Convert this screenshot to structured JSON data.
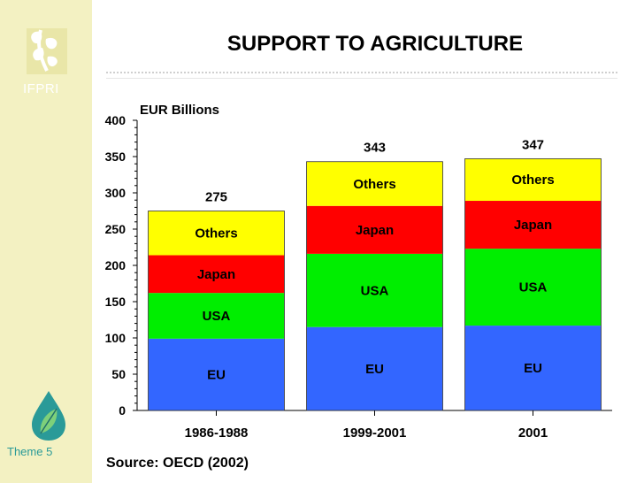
{
  "title": "SUPPORT TO AGRICULTURE",
  "source": "Source:  OECD (2002)",
  "sidebar": {
    "logo_text": "IFPRI",
    "theme_label": "Theme 5"
  },
  "colors": {
    "EU": "#3366ff",
    "USA": "#00ee00",
    "Japan": "#ff0000",
    "Others": "#ffff00",
    "sidebar": "#f3f1c2"
  },
  "chart_data": {
    "type": "bar",
    "stacked": true,
    "ylabel": "EUR Billions",
    "ylim": [
      0,
      400
    ],
    "yticks": [
      0,
      50,
      100,
      150,
      200,
      250,
      300,
      350,
      400
    ],
    "categories": [
      "1986-1988",
      "1999-2001",
      "2001"
    ],
    "series": [
      {
        "name": "EU",
        "values": [
          99,
          115,
          117
        ]
      },
      {
        "name": "USA",
        "values": [
          63,
          101,
          106
        ]
      },
      {
        "name": "Japan",
        "values": [
          52,
          66,
          66
        ]
      },
      {
        "name": "Others",
        "values": [
          61,
          61,
          58
        ]
      }
    ],
    "totals": [
      275,
      343,
      347
    ],
    "grid": false,
    "legend": "none"
  }
}
